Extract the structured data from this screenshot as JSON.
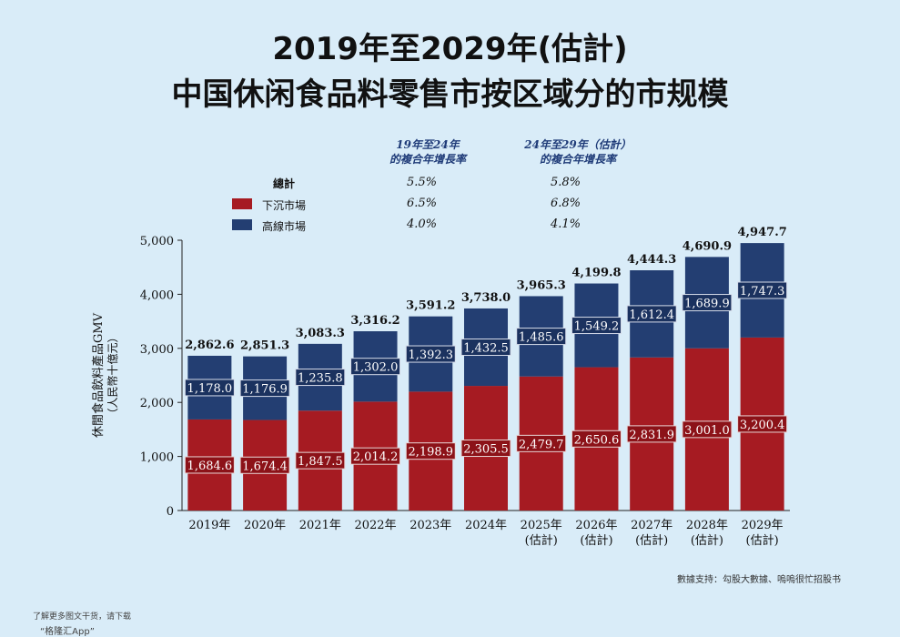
{
  "title_line1": "2019年至2029年(估計)",
  "title_line2": "中国休闲食品料零售市按区域分的市规模",
  "cagr": {
    "head1": [
      "19年至24年",
      "的複合年增長率"
    ],
    "head2": [
      "24年至29年（估計）",
      "的複合年增長率"
    ],
    "rows": [
      {
        "label": "總計",
        "v1": "5.5%",
        "v2": "5.8%",
        "color": ""
      },
      {
        "label": "下沉市場",
        "v1": "6.5%",
        "v2": "6.8%",
        "color": "#a61b22"
      },
      {
        "label": "高線市場",
        "v1": "4.0%",
        "v2": "4.1%",
        "color": "#233e72"
      }
    ]
  },
  "chart_data": {
    "type": "bar",
    "stacked": true,
    "ylabel_lines": [
      "休閒食品飲料產品GMV",
      "（人民幣十億元）"
    ],
    "ylim": [
      0,
      5000
    ],
    "yticks": [
      0,
      1000,
      2000,
      3000,
      4000,
      5000
    ],
    "ytick_labels": [
      "0",
      "1,000",
      "2,000",
      "3,000",
      "4,000",
      "5,000"
    ],
    "categories": [
      "2019年",
      "2020年",
      "2021年",
      "2022年",
      "2023年",
      "2024年",
      "2025年",
      "2026年",
      "2027年",
      "2028年",
      "2029年"
    ],
    "category_sub": [
      "",
      "",
      "",
      "",
      "",
      "",
      "(估計)",
      "(估計)",
      "(估計)",
      "(估計)",
      "(估計)"
    ],
    "series": [
      {
        "name": "下沉市場",
        "color": "#a61b22",
        "values": [
          1684.6,
          1674.4,
          1847.5,
          2014.2,
          2198.9,
          2305.5,
          2479.7,
          2650.6,
          2831.9,
          3001.0,
          3200.4
        ],
        "labels": [
          "1,684.6",
          "1,674.4",
          "1,847.5",
          "2,014.2",
          "2,198.9",
          "2,305.5",
          "2,479.7",
          "2,650.6",
          "2,831.9",
          "3,001.0",
          "3,200.4"
        ]
      },
      {
        "name": "高線市場",
        "color": "#233e72",
        "values": [
          1178.0,
          1176.9,
          1235.8,
          1302.0,
          1392.3,
          1432.5,
          1485.6,
          1549.2,
          1612.4,
          1689.9,
          1747.3
        ],
        "labels": [
          "1,178.0",
          "1,176.9",
          "1,235.8",
          "1,302.0",
          "1,392.3",
          "1,432.5",
          "1,485.6",
          "1,549.2",
          "1,612.4",
          "1,689.9",
          "1,747.3"
        ]
      }
    ],
    "totals": [
      2862.6,
      2851.3,
      3083.3,
      3316.2,
      3591.2,
      3738.0,
      3965.3,
      4199.8,
      4444.3,
      4690.9,
      4947.7
    ],
    "total_labels": [
      "2,862.6",
      "2,851.3",
      "3,083.3",
      "3,316.2",
      "3,591.2",
      "3,738.0",
      "3,965.3",
      "4,199.8",
      "4,444.3",
      "4,690.9",
      "4,947.7"
    ]
  },
  "source": "數據支持：勾股大數據、嗚嗚很忙招股书",
  "footer1": "了解更多图文干货，请下载",
  "footer2": "“格隆汇App”"
}
